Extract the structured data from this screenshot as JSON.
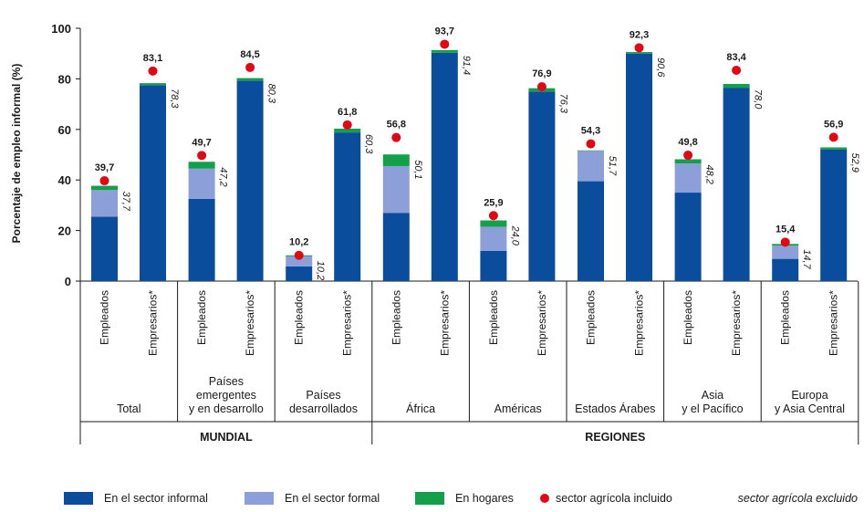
{
  "chart_data": {
    "type": "bar",
    "stacked": true,
    "ylabel": "Porcentaje de empleo informal (%)",
    "ylim": [
      0,
      100
    ],
    "yticks": [
      "0",
      "20",
      "40",
      "60",
      "80",
      "100"
    ],
    "grid": false,
    "legend_position": "bottom",
    "colors": {
      "informal": "#0a4d9c",
      "formal": "#8d9fd8",
      "hogares": "#12a14a",
      "dot": "#e30613"
    },
    "super_groups": [
      {
        "label": "MUNDIAL",
        "groups": [
          0,
          1,
          2
        ]
      },
      {
        "label": "REGIONES",
        "groups": [
          3,
          4,
          5,
          6,
          7
        ]
      }
    ],
    "groups": [
      {
        "label_lines": [
          "Total"
        ],
        "bars": [
          {
            "category": "Empleados",
            "informal": 25.5,
            "formal": 10.5,
            "hogares": 1.7,
            "total_label": "37,7",
            "agri_value": 39.7,
            "agri_label": "39,7"
          },
          {
            "category": "Empresarios*",
            "informal": 77.5,
            "formal": 0,
            "hogares": 0.8,
            "total_label": "78,3",
            "agri_value": 83.1,
            "agri_label": "83,1"
          }
        ]
      },
      {
        "label_lines": [
          "Países",
          "emergentes",
          "y en desarrollo"
        ],
        "bars": [
          {
            "category": "Empleados",
            "informal": 32.5,
            "formal": 12.0,
            "hogares": 2.7,
            "total_label": "47,2",
            "agri_value": 49.7,
            "agri_label": "49,7"
          },
          {
            "category": "Empresarios*",
            "informal": 79.3,
            "formal": 0,
            "hogares": 1.0,
            "total_label": "80,3",
            "agri_value": 84.5,
            "agri_label": "84,5"
          }
        ]
      },
      {
        "label_lines": [
          "Países",
          "desarrollados"
        ],
        "bars": [
          {
            "category": "Empleados",
            "informal": 5.8,
            "formal": 4.0,
            "hogares": 0.4,
            "total_label": "10,2",
            "agri_value": 10.2,
            "agri_label": "10,2"
          },
          {
            "category": "Empresarios*",
            "informal": 58.8,
            "formal": 0,
            "hogares": 1.5,
            "total_label": "60,3",
            "agri_value": 61.8,
            "agri_label": "61,8"
          }
        ]
      },
      {
        "label_lines": [
          "África"
        ],
        "bars": [
          {
            "category": "Empleados",
            "informal": 27.0,
            "formal": 18.5,
            "hogares": 4.6,
            "total_label": "50,1",
            "agri_value": 56.8,
            "agri_label": "56,8"
          },
          {
            "category": "Empresarios*",
            "informal": 90.3,
            "formal": 0,
            "hogares": 1.1,
            "total_label": "91,4",
            "agri_value": 93.7,
            "agri_label": "93,7"
          }
        ]
      },
      {
        "label_lines": [
          "Américas"
        ],
        "bars": [
          {
            "category": "Empleados",
            "informal": 12.0,
            "formal": 9.5,
            "hogares": 2.5,
            "total_label": "24,0",
            "agri_value": 25.9,
            "agri_label": "25,9"
          },
          {
            "category": "Empresarios*",
            "informal": 75.0,
            "formal": 0,
            "hogares": 1.3,
            "total_label": "76,3",
            "agri_value": 76.9,
            "agri_label": "76,9"
          }
        ]
      },
      {
        "label_lines": [
          "Estados Árabes"
        ],
        "bars": [
          {
            "category": "Empleados",
            "informal": 39.5,
            "formal": 12.0,
            "hogares": 0.2,
            "total_label": "51,7",
            "agri_value": 54.3,
            "agri_label": "54,3"
          },
          {
            "category": "Empresarios*",
            "informal": 90.0,
            "formal": 0,
            "hogares": 0.6,
            "total_label": "90,6",
            "agri_value": 92.3,
            "agri_label": "92,3"
          }
        ]
      },
      {
        "label_lines": [
          "Asia",
          "y el Pacífico"
        ],
        "bars": [
          {
            "category": "Empleados",
            "informal": 35.0,
            "formal": 11.5,
            "hogares": 1.7,
            "total_label": "48,2",
            "agri_value": 49.8,
            "agri_label": "49,8"
          },
          {
            "category": "Empresarios*",
            "informal": 76.5,
            "formal": 0,
            "hogares": 1.5,
            "total_label": "78,0",
            "agri_value": 83.4,
            "agri_label": "83,4"
          }
        ]
      },
      {
        "label_lines": [
          "Europa",
          "y Asia Central"
        ],
        "bars": [
          {
            "category": "Empleados",
            "informal": 8.8,
            "formal": 5.2,
            "hogares": 0.7,
            "total_label": "14,7",
            "agri_value": 15.4,
            "agri_label": "15,4"
          },
          {
            "category": "Empresarios*",
            "informal": 52.0,
            "formal": 0,
            "hogares": 0.9,
            "total_label": "52,9",
            "agri_value": 56.9,
            "agri_label": "56,9"
          }
        ]
      }
    ],
    "legend": [
      {
        "key": "informal",
        "label": "En el sector informal"
      },
      {
        "key": "formal",
        "label": "En el sector formal"
      },
      {
        "key": "hogares",
        "label": "En hogares"
      },
      {
        "key": "dot",
        "label": "sector agrícola incluido"
      }
    ],
    "legend_note": "sector agrícola excluido"
  }
}
